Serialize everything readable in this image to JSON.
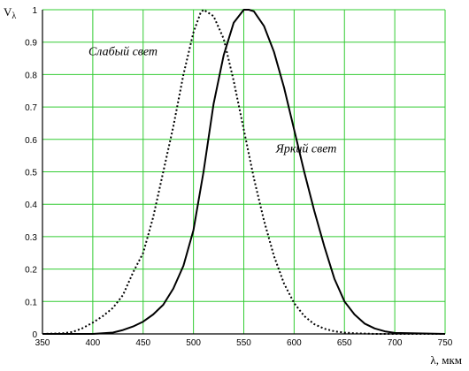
{
  "chart_data": {
    "type": "line",
    "title": "",
    "xlabel": "λ, мкм",
    "ylabel": "Vλ",
    "ylabel_main": "V",
    "ylabel_sub": "λ",
    "xlim": [
      350,
      750
    ],
    "ylim": [
      0,
      1
    ],
    "grid": true,
    "xticks": [
      350,
      400,
      450,
      500,
      550,
      600,
      650,
      700,
      750
    ],
    "yticks": [
      0,
      0.1,
      0.2,
      0.3,
      0.4,
      0.5,
      0.6,
      0.7,
      0.8,
      0.9,
      1
    ],
    "ytick_labels": [
      "0",
      "0.1",
      "0.2",
      "0.3",
      "0.4",
      "0.5",
      "0.6",
      "0.7",
      "0.8",
      "0.9",
      "1"
    ],
    "colors": {
      "grid": "#33cc33",
      "line": "#000000"
    },
    "series": [
      {
        "name": "Слабый свет",
        "style": "dotted",
        "x": [
          350,
          370,
          380,
          390,
          400,
          410,
          420,
          430,
          440,
          450,
          460,
          470,
          480,
          490,
          500,
          507,
          510,
          520,
          530,
          540,
          550,
          560,
          570,
          580,
          590,
          600,
          610,
          620,
          630,
          640,
          650,
          660,
          670,
          680,
          700,
          750
        ],
        "y": [
          0,
          0.002,
          0.006,
          0.018,
          0.035,
          0.055,
          0.08,
          0.12,
          0.19,
          0.25,
          0.36,
          0.5,
          0.64,
          0.8,
          0.93,
          0.99,
          1.0,
          0.98,
          0.91,
          0.78,
          0.63,
          0.48,
          0.35,
          0.24,
          0.155,
          0.095,
          0.055,
          0.03,
          0.016,
          0.008,
          0.004,
          0.002,
          0.001,
          0,
          0,
          0
        ]
      },
      {
        "name": "Яркий свет",
        "style": "solid",
        "x": [
          350,
          400,
          420,
          430,
          440,
          450,
          460,
          470,
          480,
          490,
          500,
          510,
          520,
          530,
          540,
          550,
          555,
          560,
          570,
          580,
          590,
          600,
          610,
          620,
          630,
          640,
          650,
          660,
          670,
          680,
          690,
          700,
          750
        ],
        "y": [
          0,
          0,
          0.004,
          0.012,
          0.023,
          0.038,
          0.06,
          0.09,
          0.14,
          0.21,
          0.32,
          0.5,
          0.71,
          0.86,
          0.96,
          1.0,
          1.0,
          0.995,
          0.95,
          0.87,
          0.76,
          0.63,
          0.5,
          0.38,
          0.27,
          0.17,
          0.1,
          0.06,
          0.032,
          0.017,
          0.008,
          0.003,
          0
        ]
      }
    ],
    "annotations": [
      {
        "text": "Слабый свет",
        "x": 430,
        "y": 0.86,
        "series": "Слабый свет"
      },
      {
        "text": "Яркий свет",
        "x": 612,
        "y": 0.56,
        "series": "Яркий свет"
      }
    ]
  }
}
